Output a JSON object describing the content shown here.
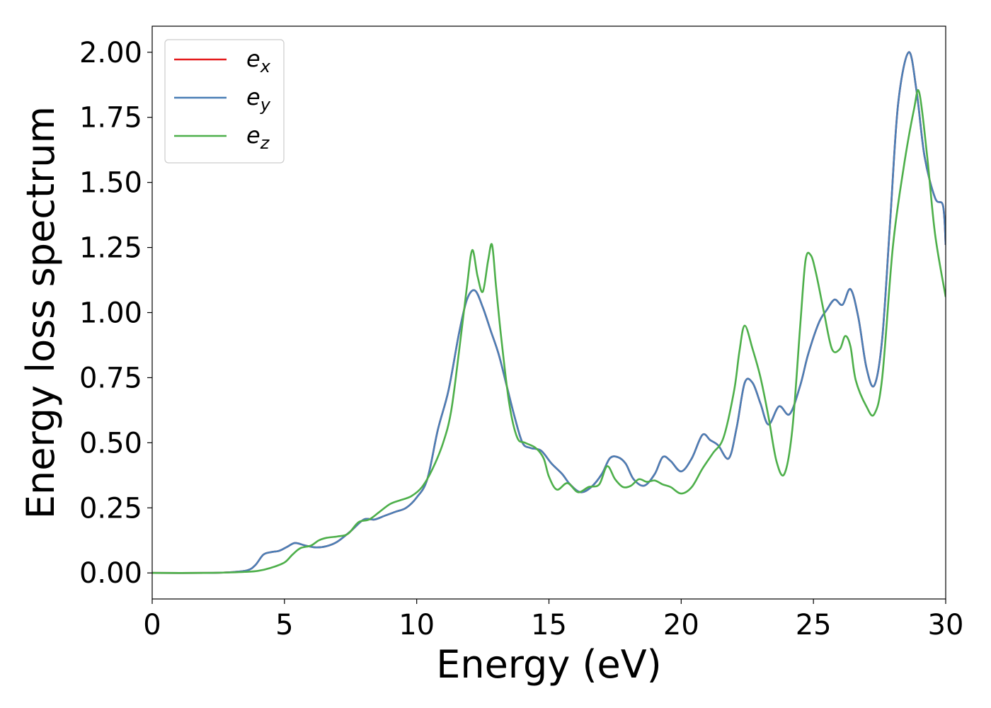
{
  "chart_data": {
    "type": "line",
    "title": "",
    "xlabel": "Energy (eV)",
    "ylabel": "Energy loss spectrum",
    "xlim": [
      0,
      30
    ],
    "ylim": [
      -0.1,
      2.1
    ],
    "xticks": [
      0,
      5,
      10,
      15,
      20,
      25,
      30
    ],
    "xtick_labels": [
      "0",
      "5",
      "10",
      "15",
      "20",
      "25",
      "30"
    ],
    "yticks": [
      0,
      0.25,
      0.5,
      0.75,
      1.0,
      1.25,
      1.5,
      1.75,
      2.0
    ],
    "ytick_labels": [
      "0.00",
      "0.25",
      "0.50",
      "0.75",
      "1.00",
      "1.25",
      "1.50",
      "1.75",
      "2.00"
    ],
    "grid": false,
    "legend_position": "top-left",
    "series": [
      {
        "name": "e",
        "subscript": "x",
        "color": "#e41a1c",
        "x": [
          0,
          2,
          3,
          3.6,
          3.9,
          4.2,
          4.5,
          4.8,
          5.1,
          5.4,
          5.8,
          6.2,
          6.6,
          7.0,
          7.5,
          8.0,
          8.4,
          8.8,
          9.2,
          9.6,
          10.0,
          10.4,
          10.8,
          11.2,
          11.6,
          11.9,
          12.2,
          12.5,
          12.8,
          13.1,
          13.4,
          13.7,
          14.0,
          14.3,
          14.7,
          15.1,
          15.5,
          15.8,
          16.2,
          16.6,
          17.0,
          17.3,
          17.6,
          17.9,
          18.2,
          18.6,
          19.0,
          19.3,
          19.6,
          20.0,
          20.4,
          20.8,
          21.1,
          21.4,
          21.8,
          22.1,
          22.4,
          22.7,
          23.0,
          23.3,
          23.7,
          24.1,
          24.5,
          24.8,
          25.2,
          25.5,
          25.8,
          26.1,
          26.4,
          26.7,
          27.0,
          27.3,
          27.6,
          27.9,
          28.2,
          28.6,
          28.9,
          29.2,
          29.6,
          29.9,
          30.0
        ],
        "y": [
          0,
          0,
          0.003,
          0.01,
          0.03,
          0.07,
          0.08,
          0.085,
          0.1,
          0.115,
          0.105,
          0.098,
          0.103,
          0.12,
          0.16,
          0.205,
          0.205,
          0.22,
          0.235,
          0.25,
          0.29,
          0.36,
          0.55,
          0.7,
          0.92,
          1.05,
          1.085,
          1.02,
          0.93,
          0.84,
          0.72,
          0.6,
          0.5,
          0.48,
          0.47,
          0.42,
          0.38,
          0.34,
          0.31,
          0.33,
          0.38,
          0.44,
          0.445,
          0.42,
          0.36,
          0.335,
          0.38,
          0.445,
          0.43,
          0.39,
          0.44,
          0.53,
          0.51,
          0.49,
          0.44,
          0.56,
          0.73,
          0.73,
          0.65,
          0.57,
          0.64,
          0.61,
          0.72,
          0.84,
          0.96,
          1.01,
          1.05,
          1.03,
          1.09,
          0.98,
          0.79,
          0.72,
          0.9,
          1.35,
          1.8,
          2.0,
          1.85,
          1.6,
          1.44,
          1.41,
          1.26
        ]
      },
      {
        "name": "e",
        "subscript": "y",
        "color": "#4a7fb6",
        "x": [
          0,
          2,
          3,
          3.6,
          3.9,
          4.2,
          4.5,
          4.8,
          5.1,
          5.4,
          5.8,
          6.2,
          6.6,
          7.0,
          7.5,
          8.0,
          8.4,
          8.8,
          9.2,
          9.6,
          10.0,
          10.4,
          10.8,
          11.2,
          11.6,
          11.9,
          12.2,
          12.5,
          12.8,
          13.1,
          13.4,
          13.7,
          14.0,
          14.3,
          14.7,
          15.1,
          15.5,
          15.8,
          16.2,
          16.6,
          17.0,
          17.3,
          17.6,
          17.9,
          18.2,
          18.6,
          19.0,
          19.3,
          19.6,
          20.0,
          20.4,
          20.8,
          21.1,
          21.4,
          21.8,
          22.1,
          22.4,
          22.7,
          23.0,
          23.3,
          23.7,
          24.1,
          24.5,
          24.8,
          25.2,
          25.5,
          25.8,
          26.1,
          26.4,
          26.7,
          27.0,
          27.3,
          27.6,
          27.9,
          28.2,
          28.6,
          28.9,
          29.2,
          29.6,
          29.9,
          30.0
        ],
        "y": [
          0,
          0,
          0.003,
          0.01,
          0.03,
          0.07,
          0.08,
          0.085,
          0.1,
          0.115,
          0.105,
          0.098,
          0.103,
          0.12,
          0.16,
          0.205,
          0.205,
          0.22,
          0.235,
          0.25,
          0.29,
          0.36,
          0.55,
          0.7,
          0.92,
          1.05,
          1.085,
          1.02,
          0.93,
          0.84,
          0.72,
          0.6,
          0.5,
          0.48,
          0.47,
          0.42,
          0.38,
          0.34,
          0.31,
          0.33,
          0.38,
          0.44,
          0.445,
          0.42,
          0.36,
          0.335,
          0.38,
          0.445,
          0.43,
          0.39,
          0.44,
          0.53,
          0.51,
          0.49,
          0.44,
          0.56,
          0.73,
          0.73,
          0.65,
          0.57,
          0.64,
          0.61,
          0.72,
          0.84,
          0.96,
          1.01,
          1.05,
          1.03,
          1.09,
          0.98,
          0.79,
          0.72,
          0.9,
          1.35,
          1.8,
          2.0,
          1.85,
          1.6,
          1.44,
          1.41,
          1.26
        ]
      },
      {
        "name": "e",
        "subscript": "z",
        "color": "#4daf4a",
        "x": [
          0,
          2,
          3,
          3.5,
          4.0,
          4.5,
          5.0,
          5.3,
          5.6,
          6.0,
          6.3,
          6.6,
          7.0,
          7.4,
          7.8,
          8.2,
          8.6,
          9.0,
          9.4,
          9.8,
          10.2,
          10.6,
          11.0,
          11.3,
          11.6,
          11.9,
          12.1,
          12.3,
          12.5,
          12.7,
          12.85,
          13.0,
          13.2,
          13.5,
          13.8,
          14.1,
          14.5,
          14.8,
          15.0,
          15.3,
          15.7,
          16.1,
          16.5,
          16.9,
          17.2,
          17.5,
          17.8,
          18.1,
          18.4,
          18.7,
          19.0,
          19.3,
          19.6,
          20.0,
          20.4,
          20.8,
          21.2,
          21.6,
          22.0,
          22.2,
          22.4,
          22.7,
          23.0,
          23.3,
          23.6,
          23.9,
          24.2,
          24.5,
          24.7,
          24.9,
          25.1,
          25.4,
          25.7,
          26.0,
          26.2,
          26.4,
          26.6,
          27.0,
          27.3,
          27.6,
          28.0,
          28.4,
          28.8,
          29.0,
          29.3,
          29.6,
          30.0
        ],
        "y": [
          0,
          0,
          0.002,
          0.004,
          0.008,
          0.02,
          0.04,
          0.07,
          0.095,
          0.105,
          0.125,
          0.135,
          0.14,
          0.15,
          0.195,
          0.205,
          0.235,
          0.265,
          0.28,
          0.295,
          0.33,
          0.4,
          0.5,
          0.62,
          0.85,
          1.1,
          1.24,
          1.14,
          1.08,
          1.2,
          1.26,
          1.1,
          0.9,
          0.65,
          0.52,
          0.5,
          0.48,
          0.44,
          0.37,
          0.32,
          0.345,
          0.31,
          0.33,
          0.34,
          0.41,
          0.36,
          0.33,
          0.335,
          0.36,
          0.35,
          0.355,
          0.34,
          0.33,
          0.305,
          0.33,
          0.4,
          0.46,
          0.52,
          0.7,
          0.85,
          0.95,
          0.86,
          0.75,
          0.6,
          0.43,
          0.38,
          0.55,
          0.95,
          1.2,
          1.22,
          1.15,
          1.0,
          0.86,
          0.86,
          0.91,
          0.87,
          0.74,
          0.64,
          0.61,
          0.75,
          1.25,
          1.55,
          1.78,
          1.845,
          1.6,
          1.3,
          1.06
        ]
      }
    ]
  }
}
